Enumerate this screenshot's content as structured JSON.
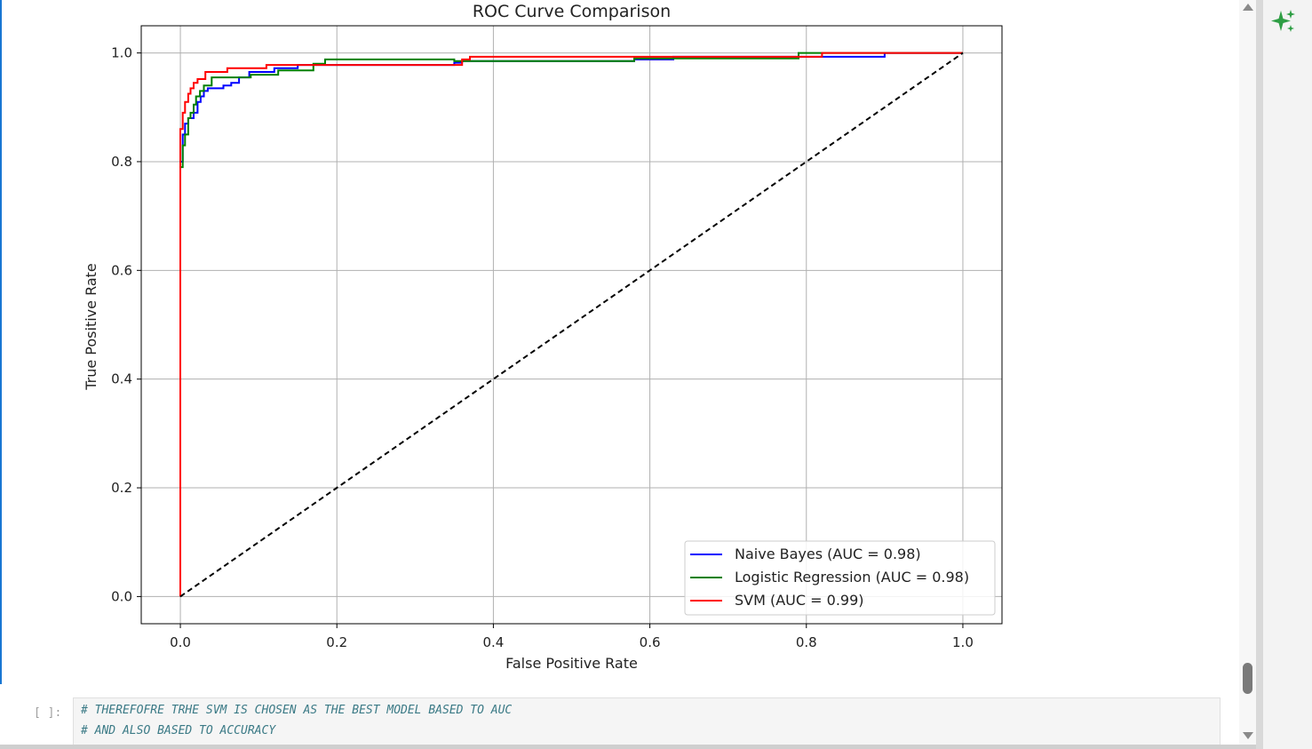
{
  "notebook": {
    "code_cell": {
      "prompt": "[ ]:",
      "lines": [
        "# THEREFOFRE TRHE SVM IS CHOSEN AS THE BEST MODEL BASED TO AUC",
        "# AND ALSO BASED TO ACCURACY"
      ]
    },
    "sidebar": {
      "assistant_icon": "sparkle-icon",
      "accent_color": "#2e9e44"
    }
  },
  "chart_data": {
    "type": "line",
    "title": "ROC Curve Comparison",
    "xlabel": "False Positive Rate",
    "ylabel": "True Positive Rate",
    "xlim": [
      -0.05,
      1.05
    ],
    "ylim": [
      -0.05,
      1.05
    ],
    "xticks": [
      "0.0",
      "0.2",
      "0.4",
      "0.6",
      "0.8",
      "1.0"
    ],
    "yticks": [
      "0.0",
      "0.2",
      "0.4",
      "0.6",
      "0.8",
      "1.0"
    ],
    "grid": true,
    "legend_position": "lower-right",
    "series": [
      {
        "name": "Naive Bayes (AUC = 0.98)",
        "color": "#0000ff",
        "points": [
          [
            0,
            0
          ],
          [
            0,
            0.8
          ],
          [
            0.003,
            0.8
          ],
          [
            0.003,
            0.85
          ],
          [
            0.006,
            0.85
          ],
          [
            0.006,
            0.87
          ],
          [
            0.01,
            0.87
          ],
          [
            0.01,
            0.88
          ],
          [
            0.017,
            0.88
          ],
          [
            0.017,
            0.89
          ],
          [
            0.022,
            0.89
          ],
          [
            0.022,
            0.91
          ],
          [
            0.026,
            0.91
          ],
          [
            0.026,
            0.92
          ],
          [
            0.03,
            0.92
          ],
          [
            0.03,
            0.93
          ],
          [
            0.035,
            0.93
          ],
          [
            0.035,
            0.935
          ],
          [
            0.055,
            0.935
          ],
          [
            0.055,
            0.94
          ],
          [
            0.065,
            0.94
          ],
          [
            0.065,
            0.945
          ],
          [
            0.075,
            0.945
          ],
          [
            0.075,
            0.955
          ],
          [
            0.088,
            0.955
          ],
          [
            0.088,
            0.965
          ],
          [
            0.12,
            0.965
          ],
          [
            0.12,
            0.972
          ],
          [
            0.15,
            0.972
          ],
          [
            0.15,
            0.978
          ],
          [
            0.35,
            0.978
          ],
          [
            0.35,
            0.982
          ],
          [
            0.36,
            0.982
          ],
          [
            0.36,
            0.985
          ],
          [
            0.58,
            0.985
          ],
          [
            0.58,
            0.988
          ],
          [
            0.63,
            0.988
          ],
          [
            0.63,
            0.993
          ],
          [
            0.9,
            0.993
          ],
          [
            0.9,
            0.997
          ],
          [
            0.9,
            1.0
          ],
          [
            1.0,
            1.0
          ]
        ]
      },
      {
        "name": "Logistic Regression (AUC = 0.98)",
        "color": "#008000",
        "points": [
          [
            0,
            0
          ],
          [
            0,
            0.79
          ],
          [
            0.003,
            0.79
          ],
          [
            0.003,
            0.83
          ],
          [
            0.006,
            0.83
          ],
          [
            0.006,
            0.85
          ],
          [
            0.01,
            0.85
          ],
          [
            0.01,
            0.88
          ],
          [
            0.013,
            0.88
          ],
          [
            0.013,
            0.89
          ],
          [
            0.017,
            0.89
          ],
          [
            0.017,
            0.905
          ],
          [
            0.02,
            0.905
          ],
          [
            0.02,
            0.92
          ],
          [
            0.025,
            0.92
          ],
          [
            0.025,
            0.93
          ],
          [
            0.03,
            0.93
          ],
          [
            0.03,
            0.94
          ],
          [
            0.04,
            0.94
          ],
          [
            0.04,
            0.955
          ],
          [
            0.09,
            0.955
          ],
          [
            0.09,
            0.96
          ],
          [
            0.125,
            0.96
          ],
          [
            0.125,
            0.968
          ],
          [
            0.17,
            0.968
          ],
          [
            0.17,
            0.98
          ],
          [
            0.185,
            0.98
          ],
          [
            0.185,
            0.988
          ],
          [
            0.35,
            0.988
          ],
          [
            0.35,
            0.985
          ],
          [
            0.58,
            0.985
          ],
          [
            0.58,
            0.99
          ],
          [
            0.79,
            0.99
          ],
          [
            0.79,
            1.0
          ],
          [
            1.0,
            1.0
          ]
        ]
      },
      {
        "name": "SVM (AUC = 0.99)",
        "color": "#ff0000",
        "points": [
          [
            0,
            0
          ],
          [
            0,
            0.86
          ],
          [
            0.003,
            0.86
          ],
          [
            0.003,
            0.89
          ],
          [
            0.006,
            0.89
          ],
          [
            0.006,
            0.91
          ],
          [
            0.01,
            0.91
          ],
          [
            0.01,
            0.925
          ],
          [
            0.013,
            0.925
          ],
          [
            0.013,
            0.935
          ],
          [
            0.017,
            0.935
          ],
          [
            0.017,
            0.945
          ],
          [
            0.022,
            0.945
          ],
          [
            0.022,
            0.952
          ],
          [
            0.032,
            0.952
          ],
          [
            0.032,
            0.965
          ],
          [
            0.06,
            0.965
          ],
          [
            0.06,
            0.972
          ],
          [
            0.11,
            0.972
          ],
          [
            0.11,
            0.978
          ],
          [
            0.36,
            0.978
          ],
          [
            0.36,
            0.988
          ],
          [
            0.37,
            0.988
          ],
          [
            0.37,
            0.993
          ],
          [
            0.82,
            0.993
          ],
          [
            0.82,
            1.0
          ],
          [
            1.0,
            1.0
          ]
        ]
      },
      {
        "name": "",
        "color": "#000000",
        "dashed": true,
        "points": [
          [
            0,
            0
          ],
          [
            1,
            1
          ]
        ]
      }
    ]
  }
}
